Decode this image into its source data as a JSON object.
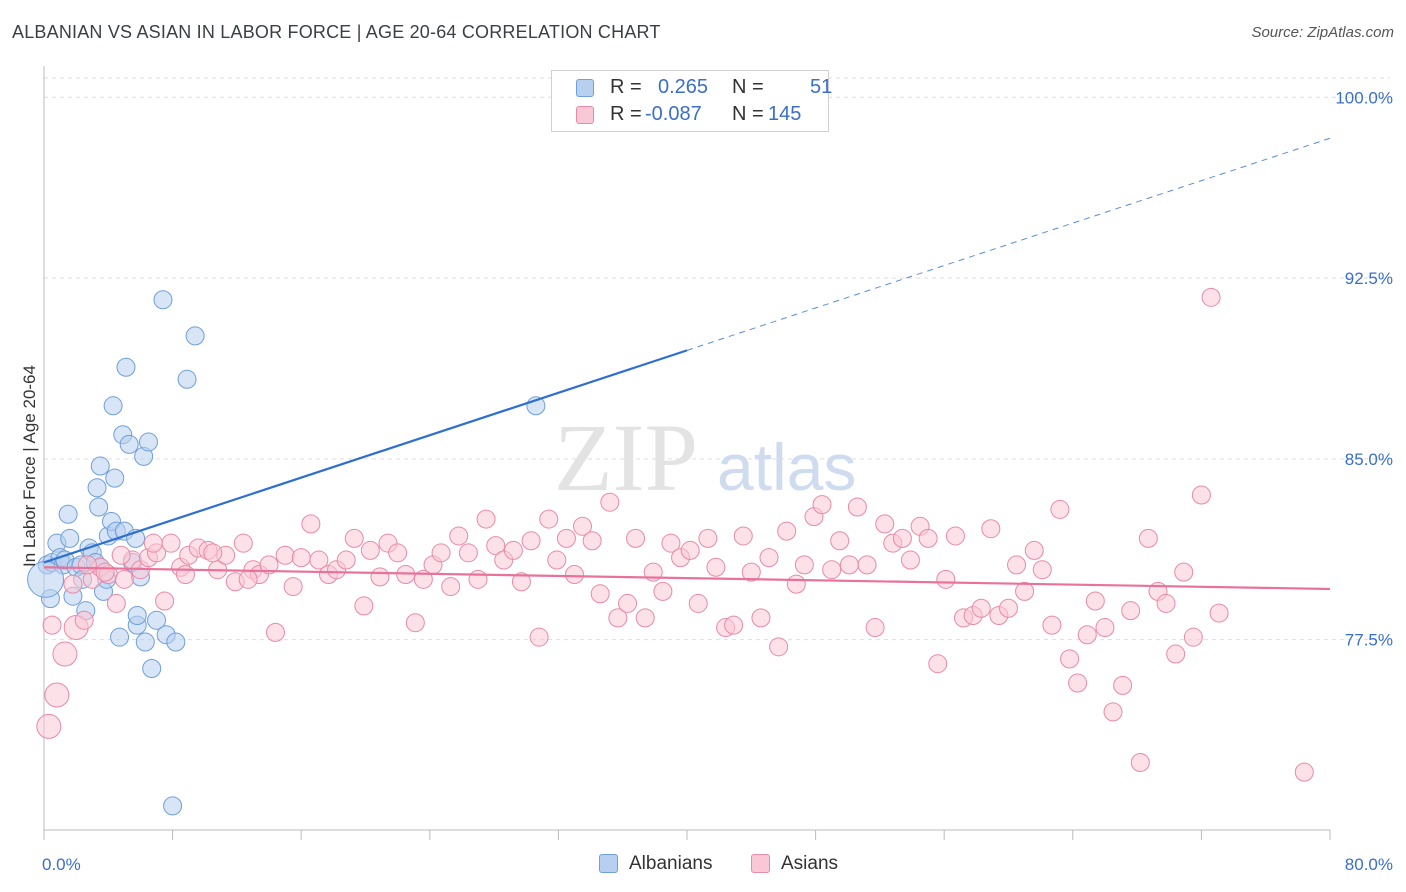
{
  "title": "ALBANIAN VS ASIAN IN LABOR FORCE | AGE 20-64 CORRELATION CHART",
  "source": "Source: ZipAtlas.com",
  "watermark": {
    "zip": "ZIP",
    "atlas": "atlas"
  },
  "legend": {
    "r_label": "R =",
    "n_label": "N =",
    "rows": [
      {
        "name": "Albanians",
        "r": "0.265",
        "n": "51",
        "fill": "#b8d0f0",
        "stroke": "#6f9fd8"
      },
      {
        "name": "Asians",
        "r": "-0.087",
        "n": "145",
        "fill": "#f9c8d6",
        "stroke": "#e98aa8"
      }
    ]
  },
  "colors": {
    "blue_line": "#2f6fcf",
    "pink_line": "#e8729a",
    "axis_text": "#3a6fc9",
    "grid": "#dddddd"
  },
  "chart_data": {
    "type": "scatter",
    "title": "ALBANIAN VS ASIAN IN LABOR FORCE | AGE 20-64 CORRELATION CHART",
    "xlabel": "",
    "ylabel": "In Labor Force | Age 20-64",
    "xlim": [
      0,
      80
    ],
    "ylim": [
      69.6,
      100.8
    ],
    "x_tick_labels": {
      "min": "0.0%",
      "max": "80.0%"
    },
    "y_ticks": [
      {
        "value": 77.5,
        "label": "77.5%"
      },
      {
        "value": 85.0,
        "label": "85.0%"
      },
      {
        "value": 92.5,
        "label": "92.5%"
      },
      {
        "value": 100.0,
        "label": "100.0%"
      }
    ],
    "series": [
      {
        "name": "Albanians",
        "r": 0.265,
        "n": 51,
        "trend": {
          "x0": 0,
          "y0": 80.7,
          "x1": 40,
          "y1": 89.5,
          "dash_to_x": 80,
          "dash_to_y": 98.3
        },
        "points": [
          [
            0.2,
            80.6
          ],
          [
            0.4,
            79.2
          ],
          [
            0.5,
            80.7
          ],
          [
            0.8,
            81.5
          ],
          [
            1.0,
            80.9
          ],
          [
            1.2,
            80.6
          ],
          [
            1.3,
            80.8
          ],
          [
            1.5,
            82.7
          ],
          [
            1.6,
            81.7
          ],
          [
            1.8,
            79.3
          ],
          [
            2.0,
            80.5
          ],
          [
            2.3,
            80.6
          ],
          [
            2.4,
            80.0
          ],
          [
            2.6,
            78.7
          ],
          [
            2.8,
            81.3
          ],
          [
            3.0,
            81.1
          ],
          [
            3.2,
            80.7
          ],
          [
            3.3,
            83.8
          ],
          [
            3.4,
            83.0
          ],
          [
            3.5,
            84.7
          ],
          [
            3.7,
            79.5
          ],
          [
            3.9,
            80.0
          ],
          [
            4.0,
            81.8
          ],
          [
            4.2,
            82.4
          ],
          [
            4.3,
            87.2
          ],
          [
            4.4,
            84.2
          ],
          [
            4.5,
            82.0
          ],
          [
            4.7,
            77.6
          ],
          [
            4.9,
            86.0
          ],
          [
            5.0,
            82.0
          ],
          [
            5.1,
            88.8
          ],
          [
            5.3,
            85.6
          ],
          [
            5.5,
            80.7
          ],
          [
            5.7,
            81.7
          ],
          [
            5.8,
            78.1
          ],
          [
            5.8,
            78.5
          ],
          [
            6.0,
            80.1
          ],
          [
            6.2,
            85.1
          ],
          [
            6.3,
            77.4
          ],
          [
            6.5,
            85.7
          ],
          [
            6.7,
            76.3
          ],
          [
            7.0,
            78.3
          ],
          [
            7.4,
            91.6
          ],
          [
            7.6,
            77.7
          ],
          [
            8.0,
            70.6
          ],
          [
            8.2,
            77.4
          ],
          [
            8.9,
            88.3
          ],
          [
            9.4,
            90.1
          ],
          [
            30.6,
            87.2
          ],
          [
            0.1,
            80.0
          ],
          [
            3.5,
            80.5
          ]
        ],
        "sizes": [
          9,
          9,
          9,
          9,
          9,
          9,
          9,
          9,
          9,
          9,
          9,
          9,
          9,
          9,
          9,
          9,
          9,
          9,
          9,
          9,
          9,
          9,
          9,
          9,
          9,
          9,
          9,
          9,
          9,
          9,
          9,
          9,
          9,
          9,
          9,
          9,
          9,
          9,
          9,
          9,
          9,
          9,
          9,
          9,
          9,
          9,
          9,
          9,
          9,
          18,
          9
        ]
      },
      {
        "name": "Asians",
        "r": -0.087,
        "n": 145,
        "trend": {
          "x0": 0,
          "y0": 80.5,
          "x1": 80,
          "y1": 79.6
        },
        "points": [
          [
            0.3,
            73.9
          ],
          [
            0.8,
            75.2
          ],
          [
            1.3,
            76.9
          ],
          [
            2.0,
            78.0
          ],
          [
            2.5,
            78.3
          ],
          [
            3.0,
            80.0
          ],
          [
            3.5,
            80.5
          ],
          [
            4.0,
            80.2
          ],
          [
            4.5,
            79.0
          ],
          [
            5.0,
            80.0
          ],
          [
            5.5,
            80.8
          ],
          [
            6.0,
            80.4
          ],
          [
            6.5,
            80.9
          ],
          [
            7.0,
            81.1
          ],
          [
            7.5,
            79.1
          ],
          [
            7.9,
            81.5
          ],
          [
            8.5,
            80.5
          ],
          [
            9.0,
            81.0
          ],
          [
            9.6,
            81.3
          ],
          [
            10.2,
            81.2
          ],
          [
            10.8,
            80.4
          ],
          [
            11.3,
            81.0
          ],
          [
            11.9,
            79.9
          ],
          [
            12.4,
            81.5
          ],
          [
            13.0,
            80.4
          ],
          [
            13.4,
            80.2
          ],
          [
            14.0,
            80.6
          ],
          [
            14.4,
            77.8
          ],
          [
            15.0,
            81.0
          ],
          [
            15.5,
            79.7
          ],
          [
            16.0,
            80.9
          ],
          [
            16.6,
            82.3
          ],
          [
            17.1,
            80.8
          ],
          [
            17.7,
            80.2
          ],
          [
            18.2,
            80.4
          ],
          [
            18.8,
            80.8
          ],
          [
            19.3,
            81.7
          ],
          [
            19.9,
            78.9
          ],
          [
            20.3,
            81.2
          ],
          [
            20.9,
            80.1
          ],
          [
            21.4,
            81.5
          ],
          [
            22.0,
            81.1
          ],
          [
            22.5,
            80.2
          ],
          [
            23.1,
            78.2
          ],
          [
            23.6,
            80.0
          ],
          [
            24.2,
            80.6
          ],
          [
            24.7,
            81.1
          ],
          [
            25.3,
            79.7
          ],
          [
            25.8,
            81.8
          ],
          [
            26.4,
            81.1
          ],
          [
            27.0,
            80.0
          ],
          [
            27.5,
            82.5
          ],
          [
            28.1,
            81.4
          ],
          [
            28.6,
            80.8
          ],
          [
            29.2,
            81.2
          ],
          [
            29.7,
            79.9
          ],
          [
            30.3,
            81.6
          ],
          [
            30.8,
            77.6
          ],
          [
            31.4,
            82.5
          ],
          [
            31.9,
            80.8
          ],
          [
            32.5,
            81.7
          ],
          [
            33.0,
            80.2
          ],
          [
            33.5,
            82.2
          ],
          [
            34.1,
            81.6
          ],
          [
            34.6,
            79.4
          ],
          [
            35.2,
            83.2
          ],
          [
            35.7,
            78.4
          ],
          [
            36.3,
            79.0
          ],
          [
            36.8,
            81.7
          ],
          [
            37.4,
            78.4
          ],
          [
            37.9,
            80.3
          ],
          [
            38.5,
            79.5
          ],
          [
            39.0,
            81.5
          ],
          [
            39.6,
            80.9
          ],
          [
            40.2,
            81.2
          ],
          [
            40.7,
            79.0
          ],
          [
            41.3,
            81.7
          ],
          [
            41.8,
            80.5
          ],
          [
            42.4,
            78.0
          ],
          [
            42.9,
            78.1
          ],
          [
            43.5,
            81.8
          ],
          [
            44.0,
            80.3
          ],
          [
            44.6,
            78.4
          ],
          [
            45.1,
            80.9
          ],
          [
            45.7,
            77.2
          ],
          [
            46.2,
            82.0
          ],
          [
            46.8,
            79.8
          ],
          [
            47.3,
            80.6
          ],
          [
            47.9,
            82.6
          ],
          [
            48.4,
            83.1
          ],
          [
            49.0,
            80.4
          ],
          [
            49.5,
            81.6
          ],
          [
            50.1,
            80.6
          ],
          [
            50.6,
            83.0
          ],
          [
            51.2,
            80.6
          ],
          [
            51.7,
            78.0
          ],
          [
            52.3,
            82.3
          ],
          [
            52.8,
            81.5
          ],
          [
            53.4,
            81.7
          ],
          [
            53.9,
            80.8
          ],
          [
            54.5,
            82.2
          ],
          [
            55.0,
            81.7
          ],
          [
            55.6,
            76.5
          ],
          [
            56.1,
            80.0
          ],
          [
            56.7,
            81.8
          ],
          [
            57.2,
            78.4
          ],
          [
            57.8,
            78.5
          ],
          [
            58.3,
            78.8
          ],
          [
            58.9,
            82.1
          ],
          [
            59.4,
            78.5
          ],
          [
            60.0,
            78.8
          ],
          [
            60.5,
            80.6
          ],
          [
            61.0,
            79.5
          ],
          [
            61.6,
            81.2
          ],
          [
            62.1,
            80.4
          ],
          [
            62.7,
            78.1
          ],
          [
            63.2,
            82.9
          ],
          [
            63.8,
            76.7
          ],
          [
            64.3,
            75.7
          ],
          [
            64.9,
            77.7
          ],
          [
            65.4,
            79.1
          ],
          [
            66.0,
            78.0
          ],
          [
            66.5,
            74.5
          ],
          [
            67.1,
            75.6
          ],
          [
            67.6,
            78.7
          ],
          [
            68.2,
            72.4
          ],
          [
            68.7,
            81.7
          ],
          [
            69.3,
            79.5
          ],
          [
            69.8,
            79.0
          ],
          [
            70.4,
            76.9
          ],
          [
            70.9,
            80.3
          ],
          [
            71.5,
            77.6
          ],
          [
            72.0,
            83.5
          ],
          [
            72.6,
            91.7
          ],
          [
            73.1,
            78.6
          ],
          [
            78.4,
            72.0
          ],
          [
            0.5,
            78.1
          ],
          [
            1.8,
            79.8
          ],
          [
            2.7,
            80.6
          ],
          [
            3.8,
            80.3
          ],
          [
            4.8,
            81.0
          ],
          [
            6.8,
            81.5
          ],
          [
            8.8,
            80.2
          ],
          [
            10.5,
            81.1
          ],
          [
            12.7,
            80.0
          ]
        ],
        "sizes": [
          12,
          12,
          12,
          12,
          9,
          9,
          9,
          9,
          9,
          9,
          9,
          9,
          9,
          9,
          9,
          9,
          9,
          9,
          9,
          9,
          9,
          9,
          9,
          9,
          9,
          9,
          9,
          9,
          9,
          9,
          9,
          9,
          9,
          9,
          9,
          9,
          9,
          9,
          9,
          9,
          9,
          9,
          9,
          9,
          9,
          9,
          9,
          9,
          9,
          9,
          9,
          9,
          9,
          9,
          9,
          9,
          9,
          9,
          9,
          9,
          9,
          9,
          9,
          9,
          9,
          9,
          9,
          9,
          9,
          9,
          9,
          9,
          9,
          9,
          9,
          9,
          9,
          9,
          9,
          9,
          9,
          9,
          9,
          9,
          9,
          9,
          9,
          9,
          9,
          9,
          9,
          9,
          9,
          9,
          9,
          9,
          9,
          9,
          9,
          9,
          9,
          9,
          9,
          9,
          9,
          9,
          9,
          9,
          9,
          9,
          9,
          9,
          9,
          9,
          9,
          9,
          9,
          9,
          9,
          9,
          9,
          9,
          9,
          9,
          9,
          9,
          9,
          9,
          9,
          9,
          9,
          9,
          9,
          9,
          9,
          9,
          9,
          9,
          9,
          9,
          9,
          9,
          9,
          9,
          9
        ]
      }
    ]
  }
}
